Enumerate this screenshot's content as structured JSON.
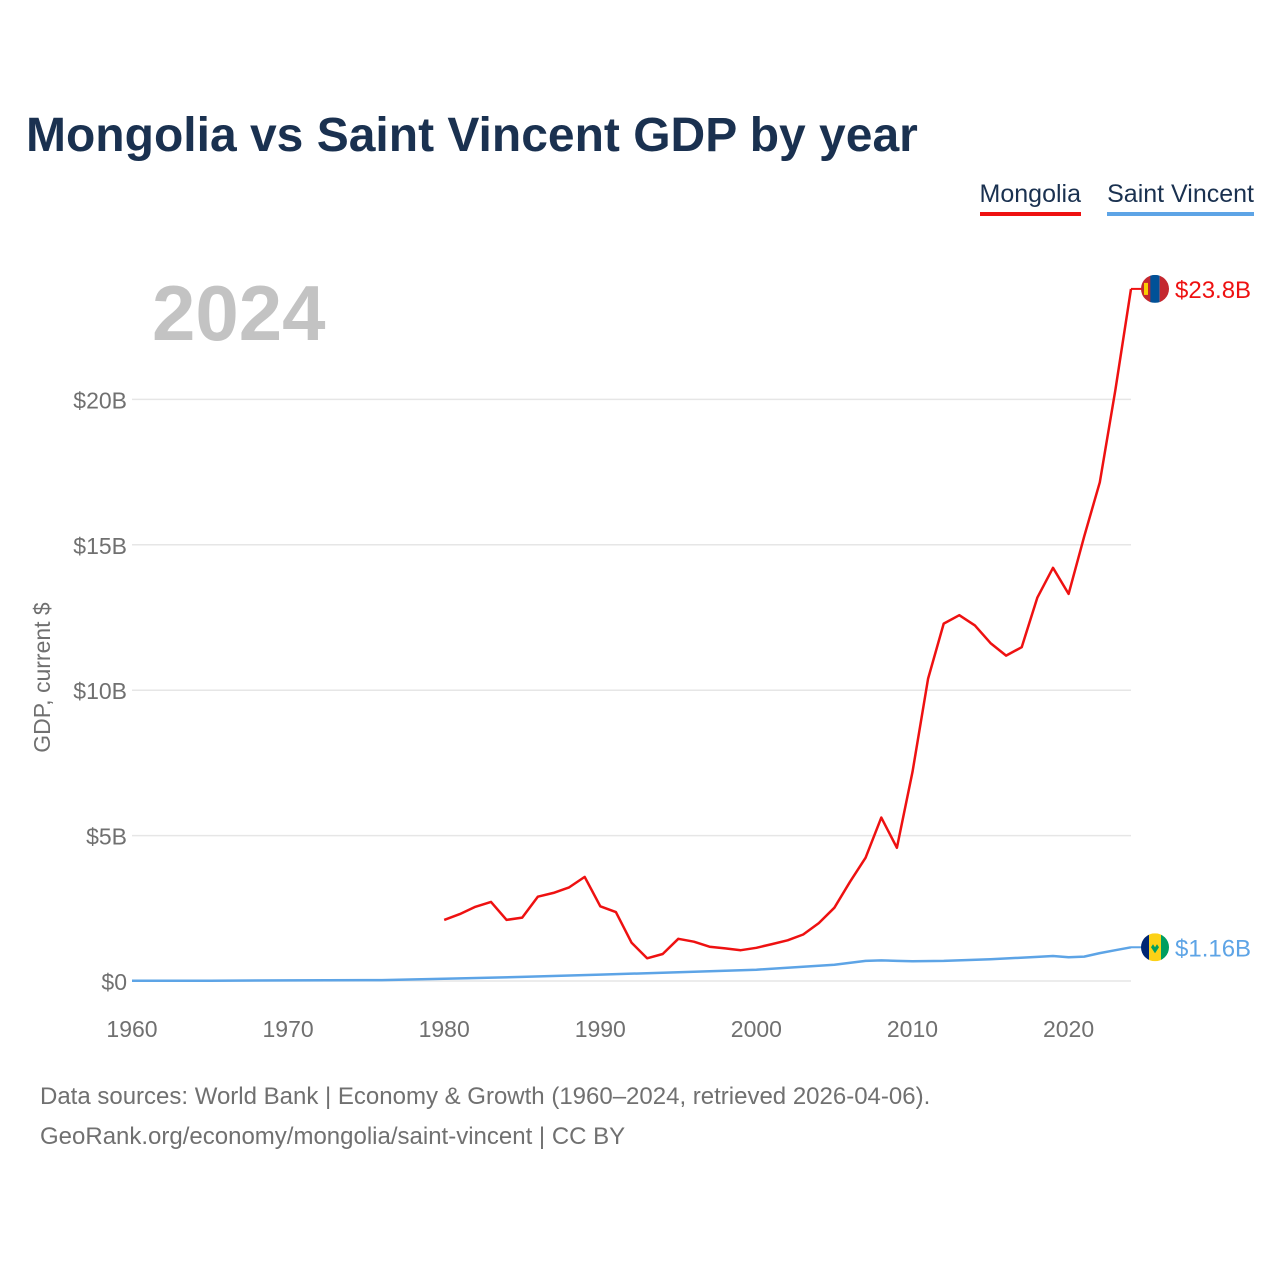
{
  "title": "Mongolia vs Saint Vincent GDP by year",
  "year_label": "2024",
  "legend": {
    "mongolia": "Mongolia",
    "saint_vincent": "Saint Vincent"
  },
  "footer": {
    "line1": "Data sources: World Bank | Economy & Growth (1960–2024, retrieved 2026-04-06).",
    "line2": "GeoRank.org/economy/mongolia/saint-vincent | CC BY"
  },
  "colors": {
    "mongolia": "#ee1111",
    "saint_vincent": "#5da4e6",
    "title": "#1a3150",
    "grid": "#e6e6e6",
    "axis_text": "#707070"
  },
  "icons": {
    "mongolia_flag": "mongolia-flag-icon",
    "saint_vincent_flag": "saint-vincent-flag-icon"
  },
  "chart_data": {
    "type": "line",
    "title": "Mongolia vs Saint Vincent GDP by year",
    "xlabel": "",
    "ylabel": "GDP, current $",
    "xlim": [
      1960,
      2024
    ],
    "ylim": [
      0,
      25
    ],
    "y_unit": "billions USD",
    "x_ticks": [
      1960,
      1970,
      1980,
      1990,
      2000,
      2010,
      2020
    ],
    "x_tick_labels": [
      "1960",
      "1970",
      "1980",
      "1990",
      "2000",
      "2010",
      "2020"
    ],
    "y_ticks": [
      0,
      5,
      10,
      15,
      20
    ],
    "y_tick_labels": [
      "$0",
      "$5B",
      "$10B",
      "$15B",
      "$20B"
    ],
    "grid": true,
    "legend_position": "top-right",
    "series": [
      {
        "name": "Mongolia",
        "end_label": "$23.8B",
        "x": [
          1980,
          1981,
          1982,
          1983,
          1984,
          1985,
          1986,
          1987,
          1988,
          1989,
          1990,
          1991,
          1992,
          1993,
          1994,
          1995,
          1996,
          1997,
          1998,
          1999,
          2000,
          2001,
          2002,
          2003,
          2004,
          2005,
          2006,
          2007,
          2008,
          2009,
          2010,
          2011,
          2012,
          2013,
          2014,
          2015,
          2016,
          2017,
          2018,
          2019,
          2020,
          2021,
          2022,
          2023,
          2024
        ],
        "values": [
          2.1,
          2.3,
          2.55,
          2.72,
          2.1,
          2.18,
          2.9,
          3.03,
          3.22,
          3.58,
          2.57,
          2.37,
          1.32,
          0.78,
          0.93,
          1.45,
          1.35,
          1.18,
          1.12,
          1.06,
          1.14,
          1.27,
          1.4,
          1.6,
          1.99,
          2.52,
          3.41,
          4.24,
          5.62,
          4.58,
          7.19,
          10.4,
          12.29,
          12.58,
          12.23,
          11.62,
          11.19,
          11.48,
          13.18,
          14.21,
          13.31,
          15.29,
          17.15,
          20.33,
          23.8
        ]
      },
      {
        "name": "Saint Vincent",
        "end_label": "$1.16B",
        "x": [
          1960,
          1965,
          1970,
          1975,
          1976,
          1980,
          1985,
          1990,
          1995,
          2000,
          2005,
          2007,
          2008,
          2009,
          2010,
          2012,
          2015,
          2018,
          2019,
          2020,
          2021,
          2022,
          2023,
          2024
        ],
        "values": [
          0.01,
          0.01,
          0.02,
          0.03,
          0.03,
          0.08,
          0.14,
          0.22,
          0.3,
          0.39,
          0.56,
          0.69,
          0.71,
          0.69,
          0.68,
          0.69,
          0.75,
          0.83,
          0.86,
          0.82,
          0.84,
          0.96,
          1.06,
          1.16
        ]
      }
    ]
  }
}
